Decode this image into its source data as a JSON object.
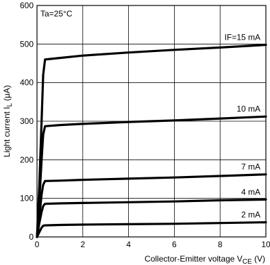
{
  "chart_data": {
    "type": "line",
    "title": "",
    "xlabel": "Collector-Emitter voltage V",
    "xlabel_sub": "CE",
    "xlabel_unit": " (V)",
    "ylabel": "Light current I",
    "ylabel_sub": "L",
    "ylabel_unit": " (μA)",
    "annotation": "Ta=25°C",
    "xlim": [
      0,
      10
    ],
    "ylim": [
      0,
      600
    ],
    "x_ticks": [
      0,
      2,
      4,
      6,
      8,
      10
    ],
    "y_ticks": [
      0,
      100,
      200,
      300,
      400,
      500,
      600
    ],
    "grid": true,
    "series": [
      {
        "name": "IF=15 mA",
        "label": "IF=15 mA",
        "x": [
          0,
          0.1,
          0.2,
          0.27,
          0.35,
          1,
          2,
          4,
          6,
          8,
          10
        ],
        "y": [
          0,
          130,
          300,
          420,
          460,
          464,
          470,
          478,
          485,
          491,
          498
        ]
      },
      {
        "name": "10 mA",
        "label": "10 mA",
        "x": [
          0,
          0.1,
          0.2,
          0.27,
          0.35,
          1,
          2,
          4,
          6,
          8,
          10
        ],
        "y": [
          0,
          90,
          200,
          265,
          287,
          290,
          293,
          298,
          302,
          307,
          312
        ]
      },
      {
        "name": "7 mA",
        "label": "7 mA",
        "x": [
          0,
          0.1,
          0.2,
          0.27,
          0.35,
          1,
          2,
          4,
          6,
          8,
          10
        ],
        "y": [
          0,
          50,
          110,
          135,
          145,
          146,
          148,
          151,
          154,
          158,
          162
        ]
      },
      {
        "name": "4 mA",
        "label": "4 mA",
        "x": [
          0,
          0.1,
          0.2,
          0.27,
          0.35,
          1,
          2,
          4,
          6,
          8,
          10
        ],
        "y": [
          0,
          35,
          65,
          80,
          86,
          87,
          88,
          90,
          92,
          95,
          97
        ]
      },
      {
        "name": "2 mA",
        "label": "2 mA",
        "x": [
          0,
          0.1,
          0.2,
          0.27,
          0.35,
          1,
          2,
          4,
          6,
          8,
          10
        ],
        "y": [
          0,
          12,
          24,
          29,
          30,
          31,
          32,
          33,
          34,
          36,
          38
        ]
      }
    ]
  }
}
